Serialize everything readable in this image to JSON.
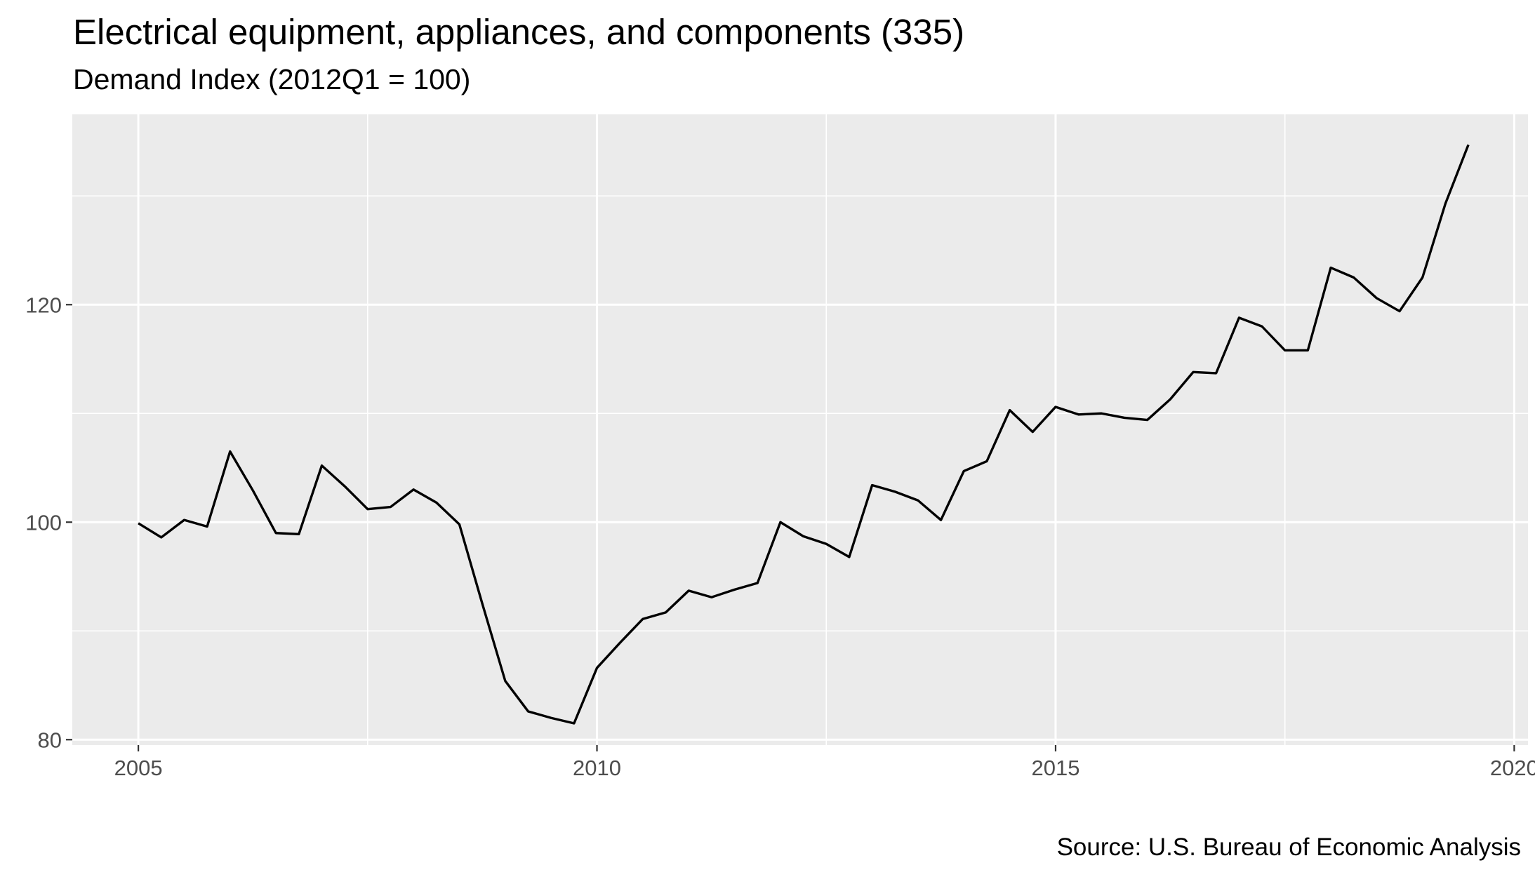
{
  "chart_data": {
    "type": "line",
    "title": "Electrical equipment, appliances, and components (335)",
    "subtitle": "Demand Index (2012Q1 = 100)",
    "caption": "Source: U.S. Bureau of Economic Analysis",
    "xlabel": "",
    "ylabel": "",
    "xlim": [
      2004.28,
      2020.15
    ],
    "ylim": [
      79.5,
      137.5
    ],
    "x_ticks": [
      2005,
      2010,
      2015,
      2020
    ],
    "x_tick_labels": [
      "2005",
      "2010",
      "2015",
      "2020"
    ],
    "y_ticks": [
      80,
      100,
      120
    ],
    "y_tick_labels": [
      "80",
      "100",
      "120"
    ],
    "grid": true,
    "background": "#ebebeb",
    "line_color": "#000000",
    "series": [
      {
        "x": [
          2005.0,
          2005.25,
          2005.5,
          2005.75,
          2006.0,
          2006.25,
          2006.5,
          2006.75,
          2007.0,
          2007.25,
          2007.5,
          2007.75,
          2008.0,
          2008.25,
          2008.5,
          2008.75,
          2009.0,
          2009.25,
          2009.5,
          2009.75,
          2010.0,
          2010.25,
          2010.5,
          2010.75,
          2011.0,
          2011.25,
          2011.5,
          2011.75,
          2012.0,
          2012.25,
          2012.5,
          2012.75,
          2013.0,
          2013.25,
          2013.5,
          2013.75,
          2014.0,
          2014.25,
          2014.5,
          2014.75,
          2015.0,
          2015.25,
          2015.5,
          2015.75,
          2016.0,
          2016.25,
          2016.5,
          2016.75,
          2017.0,
          2017.25,
          2017.5,
          2017.75,
          2018.0,
          2018.25,
          2018.5,
          2018.75,
          2019.0,
          2019.25,
          2019.5
        ],
        "values": [
          99.9,
          98.6,
          100.2,
          99.6,
          106.5,
          102.9,
          99.0,
          98.9,
          105.2,
          103.3,
          101.2,
          101.4,
          103.0,
          101.8,
          99.8,
          92.5,
          85.4,
          82.6,
          82.0,
          81.5,
          86.6,
          88.9,
          91.1,
          91.7,
          93.7,
          93.1,
          93.8,
          94.4,
          100.0,
          98.7,
          98.0,
          96.8,
          103.4,
          102.8,
          102.0,
          100.2,
          104.7,
          105.6,
          110.3,
          108.3,
          110.6,
          109.9,
          110.0,
          109.6,
          109.4,
          111.3,
          113.8,
          113.7,
          118.8,
          118.0,
          115.8,
          115.8,
          123.4,
          122.5,
          120.6,
          119.4,
          122.5,
          129.3,
          134.7
        ]
      }
    ]
  }
}
